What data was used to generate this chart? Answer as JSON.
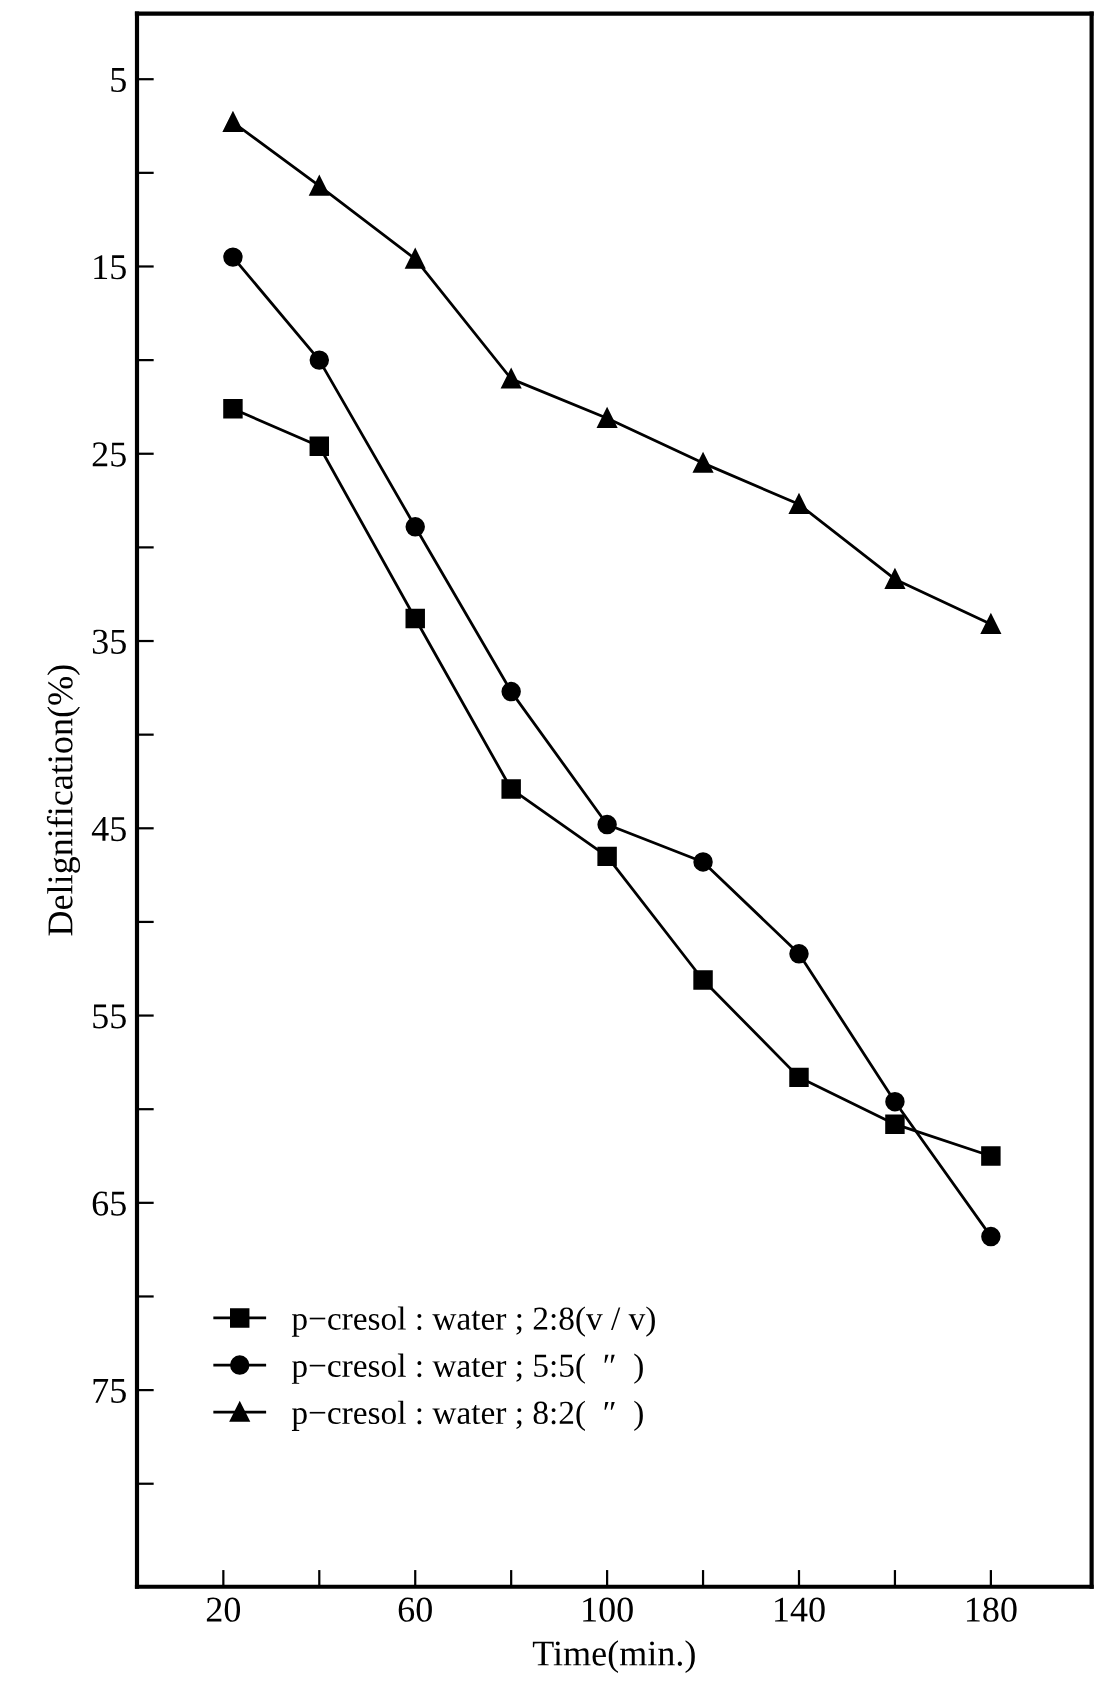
{
  "chart_data": {
    "type": "line",
    "xlabel": "Time(min.)",
    "ylabel": "Delignification(%)",
    "x": [
      22,
      40,
      60,
      80,
      100,
      120,
      140,
      160,
      180
    ],
    "xlim": [
      2,
      201
    ],
    "xticks": [
      20,
      {
        "value": 40,
        "label": null
      },
      60,
      {
        "value": 80,
        "label": null
      },
      100,
      {
        "value": 120,
        "label": null
      },
      140,
      {
        "value": 160,
        "label": null
      },
      180
    ],
    "ylim": [
      85.5,
      1.5
    ],
    "yticks": [
      5,
      {
        "value": 10,
        "label": null
      },
      15,
      {
        "value": 20,
        "label": null
      },
      25,
      {
        "value": 30,
        "label": null
      },
      35,
      {
        "value": 40,
        "label": null
      },
      45,
      {
        "value": 50,
        "label": null
      },
      55,
      {
        "value": 60,
        "label": null
      },
      65,
      {
        "value": 70,
        "label": null
      },
      75,
      {
        "value": 80,
        "label": null
      }
    ],
    "grid": false,
    "legend": "bottom left",
    "line_style": "solid",
    "series": [
      {
        "name": "p−cresol : water ; 2:8(v / v)",
        "color": "#000000",
        "marker": "square",
        "values": [
          22.6,
          24.6,
          33.8,
          42.9,
          46.5,
          53.1,
          58.3,
          60.8,
          62.5
        ]
      },
      {
        "name": "p−cresol : water ; 5:5(  ″  )",
        "color": "#000000",
        "marker": "circle",
        "values": [
          14.5,
          20,
          28.9,
          37.7,
          44.8,
          46.8,
          51.7,
          59.6,
          66.8
        ]
      },
      {
        "name": "p−cresol : water ; 8:2(  ″  )",
        "color": "#000000",
        "marker": "triangle",
        "values": [
          7.3,
          10.7,
          14.6,
          21,
          23.1,
          25.5,
          27.7,
          31.7,
          34.1
        ]
      }
    ]
  }
}
